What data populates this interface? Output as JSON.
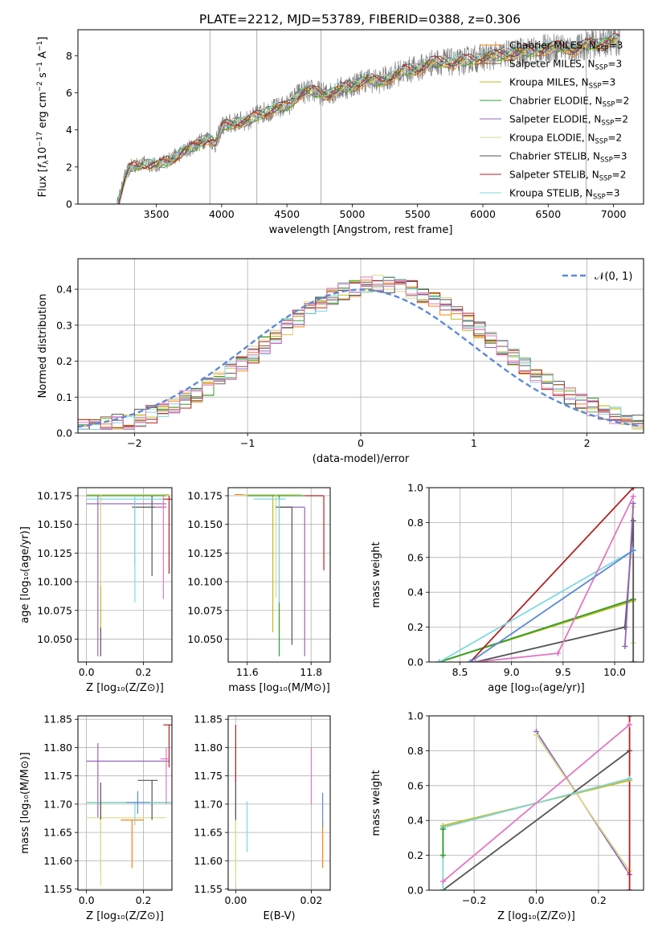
{
  "figure_title": "PLATE=2212, MJD=53789, FIBERID=0388, z=0.306",
  "colors": {
    "Chabrier MILES": "#ff7f0e",
    "Salpeter MILES": "#8c564b",
    "Kroupa MILES": "#bcbd22",
    "Chabrier ELODIE": "#2ca02c",
    "Salpeter ELODIE": "#9467bd",
    "Kroupa ELODIE": "#dbdb8d",
    "Chabrier STELIB": "#555555",
    "Salpeter STELIB": "#b22222",
    "Kroupa STELIB": "#7fd8e0",
    "pink": "#e377c2",
    "blue": "#5b8ad8",
    "grid": "#b0b0b0"
  },
  "chart_data": [
    {
      "id": "spectrum",
      "type": "line",
      "title": "PLATE=2212, MJD=53789, FIBERID=0388, z=0.306",
      "xlabel": "wavelength [Angstrom, rest frame]",
      "ylabel": "Flux [f_λ 10^-17 erg cm^-2 s^-1 A^-1]",
      "xlim": [
        2900,
        7230
      ],
      "ylim": [
        0,
        9.4
      ],
      "xticks": [
        3500,
        4000,
        4500,
        5000,
        5500,
        6000,
        6500,
        7000
      ],
      "yticks": [
        0,
        2,
        4,
        6,
        8
      ],
      "grid": false,
      "legend_position": "top-right",
      "legend": [
        {
          "label": "Chabrier MILES, N",
          "sub": "SSP",
          "tail": "=3",
          "color_key": "Chabrier MILES"
        },
        {
          "label": "Salpeter MILES, N",
          "sub": "SSP",
          "tail": "=3",
          "color_key": "Salpeter MILES"
        },
        {
          "label": "Kroupa MILES, N",
          "sub": "SSP",
          "tail": "=3",
          "color_key": "Kroupa MILES"
        },
        {
          "label": "Chabrier ELODIE, N",
          "sub": "SSP",
          "tail": "=2",
          "color_key": "Chabrier ELODIE"
        },
        {
          "label": "Salpeter ELODIE, N",
          "sub": "SSP",
          "tail": "=2",
          "color_key": "Salpeter ELODIE"
        },
        {
          "label": "Kroupa ELODIE, N",
          "sub": "SSP",
          "tail": "=2",
          "color_key": "Kroupa ELODIE"
        },
        {
          "label": "Chabrier STELIB, N",
          "sub": "SSP",
          "tail": "=3",
          "color_key": "Chabrier STELIB"
        },
        {
          "label": "Salpeter STELIB, N",
          "sub": "SSP",
          "tail": "=2",
          "color_key": "Salpeter STELIB"
        },
        {
          "label": "Kroupa STELIB, N",
          "sub": "SSP",
          "tail": "=3",
          "color_key": "Kroupa STELIB"
        }
      ],
      "data_envelope": {
        "x": [
          3200,
          3260,
          3300,
          3400,
          3500,
          3600,
          3700,
          3800,
          3900,
          3950,
          4000,
          4100,
          4200,
          4300,
          4400,
          4500,
          4600,
          4700,
          4800,
          4900,
          5000,
          5100,
          5200,
          5300,
          5400,
          5500,
          5600,
          5700,
          5800,
          5900,
          6000,
          6100,
          6200,
          6300,
          6400,
          6500,
          6600,
          6700,
          6800,
          6900,
          7000,
          7050
        ],
        "y": [
          0.0,
          1.5,
          2.0,
          2.2,
          2.1,
          2.4,
          2.8,
          3.2,
          3.6,
          3.2,
          4.2,
          4.4,
          4.5,
          4.9,
          5.1,
          5.3,
          6.0,
          6.1,
          5.9,
          6.2,
          6.4,
          6.7,
          6.6,
          6.9,
          7.2,
          7.3,
          7.6,
          7.7,
          7.6,
          7.8,
          7.9,
          8.0,
          8.1,
          8.2,
          8.3,
          8.4,
          8.5,
          8.3,
          8.6,
          8.7,
          8.8,
          8.8
        ]
      }
    },
    {
      "id": "residuals",
      "type": "bar",
      "xlabel": "(data-model)/error",
      "ylabel": "Normed distribution",
      "xlim": [
        -2.5,
        2.5
      ],
      "ylim": [
        0,
        0.485
      ],
      "xticks": [
        -2,
        -1,
        0,
        1,
        2
      ],
      "yticks": [
        0.0,
        0.1,
        0.2,
        0.3,
        0.4
      ],
      "grid": true,
      "legend_position": "top-right",
      "legend": [
        {
          "label": "𝒩(0, 1)",
          "color_key": "blue",
          "dashed": true
        }
      ],
      "bin_width": 0.1
    },
    {
      "id": "age_vs_Z",
      "type": "scatter",
      "xlabel": "Z [log₁₀(Z/Z⊙)]",
      "ylabel": "age  [log₁₀(age/yr)]",
      "xlim": [
        -0.03,
        0.3
      ],
      "ylim": [
        10.03,
        10.182
      ],
      "xticks": [
        0.0,
        0.2
      ],
      "yticks": [
        10.05,
        10.075,
        10.1,
        10.125,
        10.15,
        10.175
      ],
      "grid": true,
      "series": [
        {
          "color_key": "Chabrier MILES",
          "x": 0.17,
          "y": 10.176,
          "xerr": [
            0.17,
            0.12
          ],
          "yerr": [
            0.0,
            0.0
          ]
        },
        {
          "color_key": "Kroupa MILES",
          "x": 0.05,
          "y": 10.176,
          "xerr": [
            0.05,
            0.24
          ],
          "yerr": [
            0.12,
            0.0
          ]
        },
        {
          "color_key": "Chabrier ELODIE",
          "x": 0.17,
          "y": 10.175,
          "xerr": [
            0.17,
            0.11
          ],
          "yerr": [
            0.06,
            0.0
          ]
        },
        {
          "color_key": "Salpeter ELODIE",
          "x": 0.04,
          "y": 10.168,
          "xerr": [
            0.04,
            0.24
          ],
          "yerr": [
            0.133,
            0.007
          ]
        },
        {
          "color_key": "Kroupa ELODIE",
          "x": 0.05,
          "y": 10.176,
          "xerr": [
            0.05,
            0.23
          ],
          "yerr": [
            0.08,
            0.0
          ]
        },
        {
          "color_key": "Chabrier STELIB",
          "x": 0.23,
          "y": 10.165,
          "xerr": [
            0.07,
            0.05
          ],
          "yerr": [
            0.06,
            0.01
          ]
        },
        {
          "color_key": "Salpeter STELIB",
          "x": 0.29,
          "y": 10.172,
          "xerr": [
            0.02,
            0.01
          ],
          "yerr": [
            0.065,
            0.003
          ]
        },
        {
          "color_key": "Kroupa STELIB",
          "x": 0.17,
          "y": 10.172,
          "xerr": [
            0.17,
            0.1
          ],
          "yerr": [
            0.09,
            0.003
          ]
        },
        {
          "color_key": "pink",
          "x": 0.27,
          "y": 10.165,
          "xerr": [
            0.03,
            0.01
          ],
          "yerr": [
            0.08,
            0.01
          ]
        },
        {
          "color_key": "Chabrier STELIB",
          "x": 0.05,
          "y": 10.06,
          "xerr": [
            0.0,
            0.0
          ],
          "yerr": [
            0.025,
            0.0
          ]
        }
      ]
    },
    {
      "id": "age_vs_mass",
      "type": "scatter",
      "xlabel": "mass [log₁₀(M/M⊙)]",
      "ylabel": "",
      "xlim": [
        11.54,
        11.86
      ],
      "ylim": [
        10.03,
        10.182
      ],
      "xticks": [
        11.6,
        11.8
      ],
      "yticks": [
        10.05,
        10.075,
        10.1,
        10.125,
        10.15,
        10.175
      ],
      "grid": true,
      "series": [
        {
          "color_key": "Chabrier MILES",
          "x": 11.66,
          "y": 10.176,
          "xerr": [
            0.1,
            0.08
          ],
          "yerr": [
            0.0,
            0.0
          ]
        },
        {
          "color_key": "Kroupa MILES",
          "x": 11.68,
          "y": 10.176,
          "xerr": [
            0.1,
            0.08
          ],
          "yerr": [
            0.12,
            0.0
          ]
        },
        {
          "color_key": "Chabrier ELODIE",
          "x": 11.7,
          "y": 10.175,
          "xerr": [
            0.1,
            0.08
          ],
          "yerr": [
            0.14,
            0.0
          ]
        },
        {
          "color_key": "Salpeter ELODIE",
          "x": 11.78,
          "y": 10.165,
          "xerr": [
            0.08,
            0.0
          ],
          "yerr": [
            0.13,
            0.0
          ]
        },
        {
          "color_key": "Kroupa ELODIE",
          "x": 11.69,
          "y": 10.176,
          "xerr": [
            0.1,
            0.08
          ],
          "yerr": [
            0.09,
            0.0
          ]
        },
        {
          "color_key": "Chabrier STELIB",
          "x": 11.74,
          "y": 10.165,
          "xerr": [
            0.05,
            0.0
          ],
          "yerr": [
            0.12,
            0.0
          ]
        },
        {
          "color_key": "Salpeter STELIB",
          "x": 11.84,
          "y": 10.175,
          "xerr": [
            0.06,
            0.0
          ],
          "yerr": [
            0.065,
            0.0
          ]
        },
        {
          "color_key": "Kroupa STELIB",
          "x": 11.7,
          "y": 10.172,
          "xerr": [
            0.08,
            0.02
          ],
          "yerr": [
            0.09,
            0.0
          ]
        }
      ]
    },
    {
      "id": "mass_weight_vs_age",
      "type": "line",
      "xlabel": "age  [log₁₀(age/yr)]",
      "ylabel": "mass weight",
      "xlim": [
        8.2,
        10.28
      ],
      "ylim": [
        0,
        1.0
      ],
      "xticks": [
        8.5,
        9.0,
        9.5,
        10.0
      ],
      "yticks": [
        0.0,
        0.2,
        0.4,
        0.6,
        0.8,
        1.0
      ],
      "grid": true,
      "series": [
        {
          "color_key": "Chabrier MILES",
          "x": [
            8.3,
            10.18
          ],
          "y": [
            0.0,
            0.36
          ]
        },
        {
          "color_key": "Kroupa MILES",
          "x": [
            8.3,
            10.18
          ],
          "y": [
            0.0,
            0.35
          ]
        },
        {
          "color_key": "Chabrier ELODIE",
          "x": [
            8.3,
            10.18
          ],
          "y": [
            0.0,
            0.36
          ]
        },
        {
          "color_key": "Kroupa ELODIE",
          "x": [
            10.18,
            10.18
          ],
          "y": [
            0.11,
            0.89
          ]
        },
        {
          "color_key": "Chabrier STELIB",
          "x": [
            8.65,
            10.1,
            10.18,
            10.18
          ],
          "y": [
            0.0,
            0.2,
            0.81,
            0.0
          ]
        },
        {
          "color_key": "Salpeter STELIB",
          "x": [
            8.6,
            10.18
          ],
          "y": [
            0.0,
            1.0
          ]
        },
        {
          "color_key": "Kroupa STELIB",
          "x": [
            8.3,
            10.18
          ],
          "y": [
            0.0,
            0.64
          ]
        },
        {
          "color_key": "pink",
          "x": [
            8.65,
            9.45,
            10.18
          ],
          "y": [
            0.0,
            0.05,
            0.95
          ]
        },
        {
          "color_key": "blue",
          "x": [
            8.6,
            10.18
          ],
          "y": [
            0.0,
            0.64
          ]
        },
        {
          "color_key": "Salpeter ELODIE",
          "x": [
            10.1,
            10.18
          ],
          "y": [
            0.09,
            0.91
          ]
        }
      ]
    },
    {
      "id": "mass_vs_Z",
      "type": "scatter",
      "xlabel": "Z [log₁₀(Z/Z⊙)]",
      "ylabel": "mass [log₁₀(M/M⊙)]",
      "xlim": [
        -0.03,
        0.3
      ],
      "ylim": [
        11.548,
        11.856
      ],
      "xticks": [
        0.0,
        0.2
      ],
      "yticks": [
        11.55,
        11.6,
        11.65,
        11.7,
        11.75,
        11.8,
        11.85
      ],
      "grid": true,
      "series": [
        {
          "color_key": "Chabrier MILES",
          "x": 0.16,
          "y": 11.672,
          "xerr": [
            0.04,
            0.04
          ],
          "yerr": [
            0.085,
            0.0
          ]
        },
        {
          "color_key": "Kroupa MILES",
          "x": 0.05,
          "y": 11.703,
          "xerr": [
            0.05,
            0.24
          ],
          "yerr": [
            0.12,
            0.0
          ]
        },
        {
          "color_key": "Chabrier ELODIE",
          "x": 0.17,
          "y": 11.703,
          "xerr": [
            0.17,
            0.13
          ],
          "yerr": [
            0.0,
            0.0
          ]
        },
        {
          "color_key": "Salpeter ELODIE",
          "x": 0.04,
          "y": 11.776,
          "xerr": [
            0.04,
            0.25
          ],
          "yerr": [
            0.1,
            0.032
          ]
        },
        {
          "color_key": "Kroupa ELODIE",
          "x": 0.05,
          "y": 11.676,
          "xerr": [
            0.05,
            0.23
          ],
          "yerr": [
            0.12,
            0.0
          ]
        },
        {
          "color_key": "Chabrier STELIB",
          "x": 0.23,
          "y": 11.742,
          "xerr": [
            0.05,
            0.02
          ],
          "yerr": [
            0.07,
            0.0
          ]
        },
        {
          "color_key": "Salpeter STELIB",
          "x": 0.29,
          "y": 11.84,
          "xerr": [
            0.02,
            0.01
          ],
          "yerr": [
            0.075,
            0.0
          ]
        },
        {
          "color_key": "Kroupa STELIB",
          "x": 0.17,
          "y": 11.703,
          "xerr": [
            0.17,
            0.13
          ],
          "yerr": [
            0.04,
            0.0
          ]
        },
        {
          "color_key": "pink",
          "x": 0.28,
          "y": 11.78,
          "xerr": [
            0.02,
            0.01
          ],
          "yerr": [
            0.08,
            0.02
          ]
        },
        {
          "color_key": "blue",
          "x": 0.18,
          "y": 11.703,
          "xerr": [
            0.04,
            0.04
          ],
          "yerr": [
            0.02,
            0.02
          ]
        },
        {
          "color_key": "Chabrier STELIB",
          "x": 0.05,
          "y": 11.703,
          "xerr": [
            0.0,
            0.0
          ],
          "yerr": [
            0.03,
            0.035
          ]
        }
      ]
    },
    {
      "id": "mass_vs_EBV",
      "type": "scatter",
      "xlabel": "E(B-V)",
      "ylabel": "",
      "xlim": [
        -0.002,
        0.025
      ],
      "ylim": [
        11.548,
        11.856
      ],
      "xticks": [
        0.0,
        0.02
      ],
      "yticks": [
        11.55,
        11.6,
        11.65,
        11.7,
        11.75,
        11.8,
        11.85
      ],
      "grid": true,
      "series": [
        {
          "color_key": "Chabrier MILES",
          "x": 0.023,
          "y": 11.672,
          "xerr": [
            0.0,
            0.0
          ],
          "yerr": [
            0.085,
            0.0
          ]
        },
        {
          "color_key": "Kroupa MILES",
          "x": 0.0,
          "y": 11.703,
          "xerr": [
            0.0,
            0.0
          ],
          "yerr": [
            0.12,
            0.0
          ]
        },
        {
          "color_key": "Salpeter ELODIE",
          "x": 0.0,
          "y": 11.776,
          "xerr": [
            0.0,
            0.0
          ],
          "yerr": [
            0.1,
            0.032
          ]
        },
        {
          "color_key": "Kroupa ELODIE",
          "x": 0.0,
          "y": 11.676,
          "xerr": [
            0.0,
            0.0
          ],
          "yerr": [
            0.12,
            0.0
          ]
        },
        {
          "color_key": "Chabrier STELIB",
          "x": 0.0,
          "y": 11.742,
          "xerr": [
            0.0,
            0.0
          ],
          "yerr": [
            0.07,
            0.0
          ]
        },
        {
          "color_key": "Salpeter STELIB",
          "x": 0.0,
          "y": 11.84,
          "xerr": [
            0.0,
            0.0
          ],
          "yerr": [
            0.1,
            0.0
          ]
        },
        {
          "color_key": "Kroupa STELIB",
          "x": 0.003,
          "y": 11.66,
          "xerr": [
            0.0,
            0.0
          ],
          "yerr": [
            0.045,
            0.045
          ]
        },
        {
          "color_key": "pink",
          "x": 0.02,
          "y": 11.75,
          "xerr": [
            0.0,
            0.0
          ],
          "yerr": [
            0.05,
            0.05
          ]
        },
        {
          "color_key": "blue",
          "x": 0.023,
          "y": 11.69,
          "xerr": [
            0.0,
            0.0
          ],
          "yerr": [
            0.03,
            0.03
          ]
        }
      ]
    },
    {
      "id": "mass_weight_vs_Z",
      "type": "line",
      "xlabel": "Z [log₁₀(Z/Z⊙)]",
      "ylabel": "mass weight",
      "xlim": [
        -0.345,
        0.345
      ],
      "ylim": [
        0,
        1.0
      ],
      "xticks": [
        -0.2,
        0.0,
        0.2
      ],
      "yticks": [
        0.0,
        0.2,
        0.4,
        0.6,
        0.8,
        1.0
      ],
      "grid": true,
      "series": [
        {
          "color_key": "Chabrier MILES",
          "x": [
            -0.3,
            0.3
          ],
          "y": [
            0.36,
            0.64
          ]
        },
        {
          "color_key": "Kroupa MILES",
          "x": [
            -0.3,
            0.3
          ],
          "y": [
            0.37,
            0.63
          ]
        },
        {
          "color_key": "Salpeter ELODIE",
          "x": [
            0.0,
            0.3
          ],
          "y": [
            0.91,
            0.09
          ]
        },
        {
          "color_key": "Kroupa ELODIE",
          "x": [
            0.0,
            0.3
          ],
          "y": [
            0.89,
            0.11
          ]
        },
        {
          "color_key": "Chabrier STELIB",
          "x": [
            -0.3,
            0.3
          ],
          "y": [
            0.0,
            0.8
          ]
        },
        {
          "color_key": "Salpeter STELIB",
          "x": [
            0.3,
            0.3
          ],
          "y": [
            0.0,
            1.0
          ]
        },
        {
          "color_key": "Kroupa STELIB",
          "x": [
            -0.3,
            -0.3,
            0.3
          ],
          "y": [
            0.0,
            0.36,
            0.64
          ]
        },
        {
          "color_key": "pink",
          "x": [
            -0.3,
            0.3
          ],
          "y": [
            0.05,
            0.95
          ]
        },
        {
          "color_key": "Chabrier ELODIE",
          "x": [
            -0.3,
            -0.3
          ],
          "y": [
            0.2,
            0.35
          ]
        }
      ]
    }
  ]
}
